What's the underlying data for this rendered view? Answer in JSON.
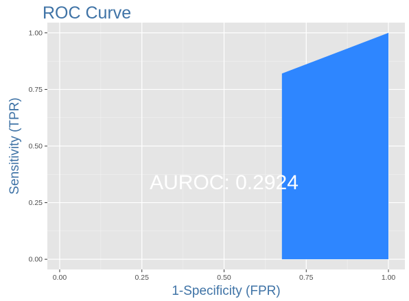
{
  "chart_data": {
    "type": "area",
    "title": "ROC Curve",
    "xlabel": "1-Specificity (FPR)",
    "ylabel": "Sensitivity (TPR)",
    "xlim": [
      -0.0375,
      1.05
    ],
    "ylim": [
      -0.045,
      1.045
    ],
    "x_ticks": [
      0.0,
      0.25,
      0.5,
      0.75,
      1.0
    ],
    "x_tick_labels": [
      "0.00",
      "0.25",
      "0.50",
      "0.75",
      "1.00"
    ],
    "y_ticks": [
      0.0,
      0.25,
      0.5,
      0.75,
      1.0
    ],
    "y_tick_labels": [
      "0.00",
      "0.25",
      "0.50",
      "0.75",
      "1.00"
    ],
    "grid": true,
    "fill_color": "#2e86ff",
    "panel_color": "#e5e5e5",
    "series": [
      {
        "x": [
          0.676,
          0.676,
          1.0,
          1.0
        ],
        "y": [
          0.0,
          0.82,
          1.0,
          0.0
        ]
      }
    ],
    "annotation": {
      "text": "AUROC: 0.2924",
      "x": 0.5,
      "y": 0.34
    }
  }
}
